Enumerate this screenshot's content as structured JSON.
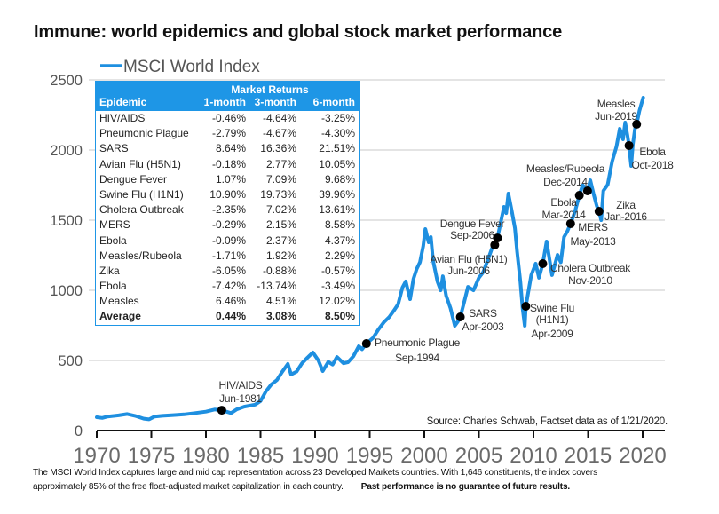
{
  "title": "Immune: world epidemics and global stock market performance",
  "legend": {
    "label": "MSCI World Index",
    "color": "#1e8fe0"
  },
  "table": {
    "group_header": "Market Returns",
    "columns": [
      "Epidemic",
      "1-month",
      "3-month",
      "6-month"
    ],
    "rows": [
      {
        "epidemic": "HIV/AIDS",
        "m1": "-0.46%",
        "m3": "-4.64%",
        "m6": "-3.25%"
      },
      {
        "epidemic": "Pneumonic Plague",
        "m1": "-2.79%",
        "m3": "-4.67%",
        "m6": "-4.30%"
      },
      {
        "epidemic": "SARS",
        "m1": "8.64%",
        "m3": "16.36%",
        "m6": "21.51%"
      },
      {
        "epidemic": "Avian Flu (H5N1)",
        "m1": "-0.18%",
        "m3": "2.77%",
        "m6": "10.05%"
      },
      {
        "epidemic": "Dengue Fever",
        "m1": "1.07%",
        "m3": "7.09%",
        "m6": "9.68%"
      },
      {
        "epidemic": "Swine Flu (H1N1)",
        "m1": "10.90%",
        "m3": "19.73%",
        "m6": "39.96%"
      },
      {
        "epidemic": "Cholera Outbreak",
        "m1": "-2.35%",
        "m3": "7.02%",
        "m6": "13.61%"
      },
      {
        "epidemic": "MERS",
        "m1": "-0.29%",
        "m3": "2.15%",
        "m6": "8.58%"
      },
      {
        "epidemic": "Ebola",
        "m1": "-0.09%",
        "m3": "2.37%",
        "m6": "4.37%"
      },
      {
        "epidemic": "Measles/Rubeola",
        "m1": "-1.71%",
        "m3": "1.92%",
        "m6": "2.29%"
      },
      {
        "epidemic": "Zika",
        "m1": "-6.05%",
        "m3": "-0.88%",
        "m6": "-0.57%"
      },
      {
        "epidemic": "Ebola",
        "m1": "-7.42%",
        "m3": "-13.74%",
        "m6": "-3.49%"
      },
      {
        "epidemic": "Measles",
        "m1": "6.46%",
        "m3": "4.51%",
        "m6": "12.02%"
      }
    ],
    "average": {
      "epidemic": "Average",
      "m1": "0.44%",
      "m3": "3.08%",
      "m6": "8.50%"
    }
  },
  "source": "Source: Charles Schwab, Factset data as of 1/21/2020.",
  "footer": {
    "line1": "The MSCI World Index captures large and mid cap representation across 23 Developed Markets countries. With 1,646 constituents, the index covers",
    "line2": "approximately 85% of the free float-adjusted market capitalization in each country.",
    "disclaimer": "Past performance is no guarantee of future results."
  },
  "chart_data": {
    "type": "line",
    "title": "Immune: world epidemics and global stock market performance",
    "xlabel": "",
    "ylabel": "",
    "xlim": [
      1970,
      2022
    ],
    "ylim": [
      0,
      2500
    ],
    "x_ticks": [
      1970,
      1975,
      1980,
      1985,
      1990,
      1995,
      2000,
      2005,
      2010,
      2015,
      2020
    ],
    "y_ticks": [
      0,
      500,
      1000,
      1500,
      2000,
      2500
    ],
    "grid": true,
    "legend": "top-left",
    "series": [
      {
        "name": "MSCI World Index",
        "color": "#1e8fe0",
        "x": [
          1970.0,
          1970.5,
          1971.0,
          1972.0,
          1972.8,
          1973.5,
          1974.3,
          1974.8,
          1975.3,
          1976.0,
          1977.0,
          1978.0,
          1979.0,
          1980.0,
          1980.8,
          1981.45,
          1982.3,
          1982.8,
          1983.5,
          1984.5,
          1985.0,
          1985.5,
          1986.0,
          1986.5,
          1987.0,
          1987.5,
          1987.8,
          1988.3,
          1988.8,
          1989.3,
          1989.8,
          1990.3,
          1990.7,
          1991.2,
          1991.6,
          1992.0,
          1992.6,
          1993.0,
          1993.5,
          1994.0,
          1994.3,
          1994.7,
          1995.3,
          1995.8,
          1996.3,
          1996.8,
          1997.2,
          1997.6,
          1998.0,
          1998.3,
          1998.7,
          1999.0,
          1999.3,
          1999.6,
          1999.9,
          2000.1,
          2000.4,
          2000.6,
          2000.8,
          2001.2,
          2001.5,
          2001.7,
          2002.0,
          2002.4,
          2002.8,
          2003.1,
          2003.3,
          2003.6,
          2004.0,
          2004.5,
          2005.0,
          2005.4,
          2005.9,
          2006.2,
          2006.45,
          2006.7,
          2007.3,
          2007.5,
          2007.7,
          2008.0,
          2008.3,
          2008.5,
          2008.8,
          2009.0,
          2009.2,
          2009.3,
          2009.8,
          2010.2,
          2010.5,
          2010.85,
          2011.2,
          2011.7,
          2012.2,
          2012.5,
          2012.8,
          2013.1,
          2013.4,
          2013.8,
          2014.2,
          2014.5,
          2014.95,
          2015.2,
          2015.5,
          2015.8,
          2016.0,
          2016.2,
          2016.4,
          2016.8,
          2017.2,
          2017.6,
          2017.9,
          2018.2,
          2018.4,
          2018.6,
          2018.75,
          2018.95,
          2019.1,
          2019.3,
          2019.45,
          2019.7,
          2020.05
        ],
        "y": [
          95,
          90,
          100,
          108,
          118,
          105,
          85,
          80,
          100,
          105,
          110,
          115,
          125,
          135,
          150,
          145,
          125,
          150,
          170,
          185,
          210,
          280,
          330,
          360,
          420,
          475,
          400,
          420,
          480,
          520,
          557,
          500,
          424,
          490,
          470,
          525,
          480,
          487,
          530,
          601,
          580,
          620,
          660,
          720,
          772,
          810,
          854,
          900,
          1020,
          1063,
          937,
          1080,
          1152,
          1200,
          1316,
          1437,
          1342,
          1380,
          1215,
          1063,
          1000,
          1100,
          962,
          873,
          747,
          780,
          810,
          900,
          1025,
          1000,
          1089,
          1130,
          1234,
          1300,
          1323,
          1373,
          1595,
          1550,
          1690,
          1570,
          1443,
          1278,
          1063,
          873,
          747,
          886,
          1108,
          1190,
          1089,
          1190,
          1348,
          1108,
          1253,
          1200,
          1380,
          1420,
          1475,
          1560,
          1677,
          1750,
          1709,
          1785,
          1690,
          1601,
          1563,
          1500,
          1709,
          1753,
          1918,
          2025,
          2152,
          2076,
          2196,
          2107,
          2032,
          1886,
          2038,
          2152,
          2184,
          2278,
          2373
        ]
      }
    ],
    "annotations": [
      {
        "label": [
          "HIV/AIDS",
          "Jun-1981"
        ],
        "x": 1981.45,
        "y": 145
      },
      {
        "label": [
          "Pneumonic Plague",
          "Sep-1994"
        ],
        "x": 1994.7,
        "y": 620
      },
      {
        "label": [
          "SARS",
          "Apr-2003"
        ],
        "x": 2003.3,
        "y": 810
      },
      {
        "label": [
          "Avian Flu (H5N1)",
          "Jun-2006"
        ],
        "x": 2006.45,
        "y": 1323
      },
      {
        "label": [
          "Dengue Fever",
          "Sep-2006"
        ],
        "x": 2006.7,
        "y": 1373
      },
      {
        "label": [
          "Swine Flu",
          "(H1N1)",
          "Apr-2009"
        ],
        "x": 2009.3,
        "y": 886
      },
      {
        "label": [
          "Cholera Outbreak",
          "Nov-2010"
        ],
        "x": 2010.85,
        "y": 1190
      },
      {
        "label": [
          "MERS",
          "May-2013"
        ],
        "x": 2013.4,
        "y": 1475
      },
      {
        "label": [
          "Ebola",
          "Mar-2014"
        ],
        "x": 2014.2,
        "y": 1677
      },
      {
        "label": [
          "Measles/Rubeola",
          "Dec-2014"
        ],
        "x": 2014.95,
        "y": 1709
      },
      {
        "label": [
          "Zika",
          "Jan-2016"
        ],
        "x": 2016.0,
        "y": 1563
      },
      {
        "label": [
          "Ebola",
          "Oct-2018"
        ],
        "x": 2018.75,
        "y": 2032
      },
      {
        "label": [
          "Measles",
          "Jun-2019"
        ],
        "x": 2019.45,
        "y": 2184
      }
    ]
  }
}
